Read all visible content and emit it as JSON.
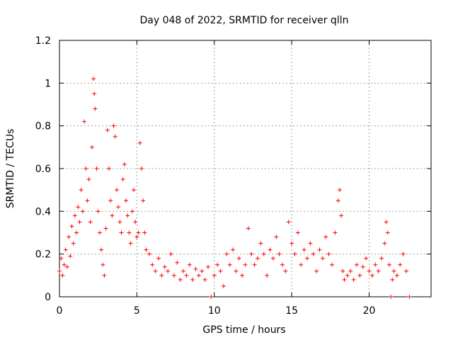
{
  "chart_data": {
    "type": "scatter",
    "title": "Day 048 of 2022, SRMTID for receiver qlln",
    "xlabel": "GPS time / hours",
    "ylabel": "SRMTID / TECUs",
    "xlim": [
      0,
      24
    ],
    "ylim": [
      0,
      1.2
    ],
    "x_ticks": [
      0,
      5,
      10,
      15,
      20
    ],
    "x_tick_labels": [
      "0",
      "5",
      "10",
      "15",
      "20"
    ],
    "y_ticks": [
      0,
      0.2,
      0.4,
      0.6,
      0.8,
      1.0,
      1.2
    ],
    "y_tick_labels": [
      "0",
      "0.2",
      "0.4",
      "0.6",
      "0.8",
      "1",
      "1.2"
    ],
    "grid": true,
    "marker": "+",
    "color": "#ff0000",
    "series": [
      {
        "name": "SRMTID",
        "points": [
          [
            0.0,
            0.12
          ],
          [
            0.1,
            0.18
          ],
          [
            0.2,
            0.1
          ],
          [
            0.3,
            0.15
          ],
          [
            0.4,
            0.22
          ],
          [
            0.5,
            0.14
          ],
          [
            0.6,
            0.28
          ],
          [
            0.7,
            0.19
          ],
          [
            0.8,
            0.33
          ],
          [
            0.9,
            0.25
          ],
          [
            1.0,
            0.38
          ],
          [
            1.1,
            0.3
          ],
          [
            1.2,
            0.42
          ],
          [
            1.3,
            0.35
          ],
          [
            1.4,
            0.5
          ],
          [
            1.5,
            0.4
          ],
          [
            1.6,
            0.82
          ],
          [
            1.7,
            0.6
          ],
          [
            1.8,
            0.45
          ],
          [
            1.9,
            0.55
          ],
          [
            2.0,
            0.35
          ],
          [
            2.1,
            0.7
          ],
          [
            2.2,
            1.02
          ],
          [
            2.25,
            0.95
          ],
          [
            2.3,
            0.88
          ],
          [
            2.4,
            0.6
          ],
          [
            2.5,
            0.4
          ],
          [
            2.6,
            0.3
          ],
          [
            2.7,
            0.22
          ],
          [
            2.8,
            0.15
          ],
          [
            2.9,
            0.1
          ],
          [
            3.0,
            0.32
          ],
          [
            3.1,
            0.78
          ],
          [
            3.2,
            0.6
          ],
          [
            3.3,
            0.45
          ],
          [
            3.4,
            0.38
          ],
          [
            3.5,
            0.8
          ],
          [
            3.6,
            0.75
          ],
          [
            3.7,
            0.5
          ],
          [
            3.8,
            0.42
          ],
          [
            3.9,
            0.35
          ],
          [
            4.0,
            0.3
          ],
          [
            4.1,
            0.55
          ],
          [
            4.2,
            0.62
          ],
          [
            4.3,
            0.45
          ],
          [
            4.4,
            0.38
          ],
          [
            4.5,
            0.3
          ],
          [
            4.6,
            0.25
          ],
          [
            4.7,
            0.4
          ],
          [
            4.8,
            0.5
          ],
          [
            4.9,
            0.35
          ],
          [
            5.0,
            0.28
          ],
          [
            5.1,
            0.3
          ],
          [
            5.2,
            0.72
          ],
          [
            5.3,
            0.6
          ],
          [
            5.4,
            0.45
          ],
          [
            5.5,
            0.3
          ],
          [
            5.6,
            0.22
          ],
          [
            5.8,
            0.2
          ],
          [
            6.0,
            0.15
          ],
          [
            6.2,
            0.12
          ],
          [
            6.4,
            0.18
          ],
          [
            6.6,
            0.1
          ],
          [
            6.8,
            0.14
          ],
          [
            7.0,
            0.12
          ],
          [
            7.2,
            0.2
          ],
          [
            7.4,
            0.1
          ],
          [
            7.6,
            0.16
          ],
          [
            7.8,
            0.08
          ],
          [
            8.0,
            0.12
          ],
          [
            8.2,
            0.1
          ],
          [
            8.4,
            0.15
          ],
          [
            8.6,
            0.08
          ],
          [
            8.8,
            0.13
          ],
          [
            9.0,
            0.1
          ],
          [
            9.2,
            0.12
          ],
          [
            9.4,
            0.08
          ],
          [
            9.6,
            0.14
          ],
          [
            9.8,
            0.0
          ],
          [
            10.0,
            0.1
          ],
          [
            10.2,
            0.15
          ],
          [
            10.4,
            0.12
          ],
          [
            10.6,
            0.05
          ],
          [
            10.8,
            0.2
          ],
          [
            11.0,
            0.15
          ],
          [
            11.2,
            0.22
          ],
          [
            11.4,
            0.12
          ],
          [
            11.6,
            0.18
          ],
          [
            11.8,
            0.1
          ],
          [
            12.0,
            0.15
          ],
          [
            12.2,
            0.32
          ],
          [
            12.4,
            0.2
          ],
          [
            12.6,
            0.15
          ],
          [
            12.8,
            0.18
          ],
          [
            13.0,
            0.25
          ],
          [
            13.2,
            0.2
          ],
          [
            13.4,
            0.1
          ],
          [
            13.6,
            0.22
          ],
          [
            13.8,
            0.18
          ],
          [
            14.0,
            0.28
          ],
          [
            14.2,
            0.2
          ],
          [
            14.4,
            0.15
          ],
          [
            14.6,
            0.12
          ],
          [
            14.8,
            0.35
          ],
          [
            15.0,
            0.25
          ],
          [
            15.2,
            0.2
          ],
          [
            15.4,
            0.3
          ],
          [
            15.6,
            0.15
          ],
          [
            15.8,
            0.22
          ],
          [
            16.0,
            0.18
          ],
          [
            16.2,
            0.25
          ],
          [
            16.4,
            0.2
          ],
          [
            16.6,
            0.12
          ],
          [
            16.8,
            0.22
          ],
          [
            17.0,
            0.18
          ],
          [
            17.2,
            0.28
          ],
          [
            17.4,
            0.2
          ],
          [
            17.6,
            0.15
          ],
          [
            17.8,
            0.3
          ],
          [
            18.0,
            0.45
          ],
          [
            18.1,
            0.5
          ],
          [
            18.2,
            0.38
          ],
          [
            18.3,
            0.12
          ],
          [
            18.4,
            0.08
          ],
          [
            18.6,
            0.1
          ],
          [
            18.8,
            0.12
          ],
          [
            19.0,
            0.08
          ],
          [
            19.2,
            0.15
          ],
          [
            19.4,
            0.1
          ],
          [
            19.6,
            0.14
          ],
          [
            19.8,
            0.18
          ],
          [
            20.0,
            0.12
          ],
          [
            20.2,
            0.1
          ],
          [
            20.4,
            0.15
          ],
          [
            20.6,
            0.12
          ],
          [
            20.8,
            0.18
          ],
          [
            21.0,
            0.25
          ],
          [
            21.1,
            0.35
          ],
          [
            21.2,
            0.3
          ],
          [
            21.3,
            0.15
          ],
          [
            21.4,
            0.0
          ],
          [
            21.5,
            0.08
          ],
          [
            21.6,
            0.12
          ],
          [
            21.8,
            0.1
          ],
          [
            22.0,
            0.15
          ],
          [
            22.2,
            0.2
          ],
          [
            22.4,
            0.12
          ],
          [
            22.6,
            0.0
          ]
        ]
      }
    ]
  }
}
